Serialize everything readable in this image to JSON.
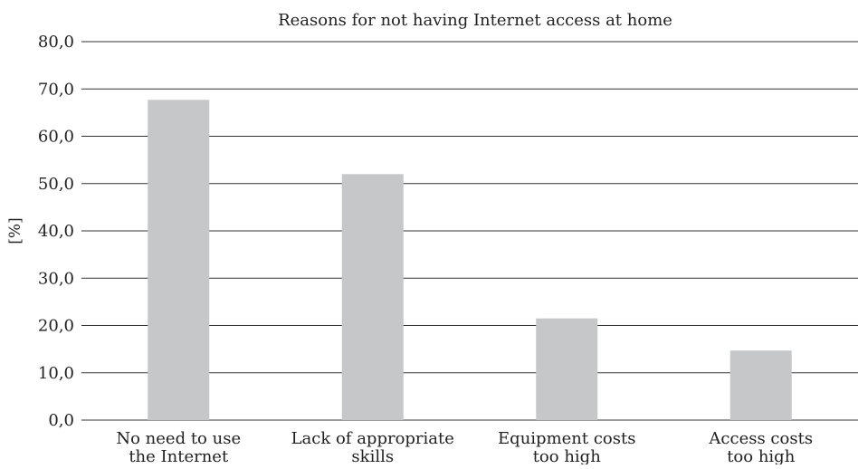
{
  "chart_data": {
    "type": "bar",
    "title": "Reasons for not having Internet access at home",
    "ylabel": "[%]",
    "xlabel": "",
    "ylim": [
      0,
      80
    ],
    "yticks": [
      "0,0",
      "10,0",
      "20,0",
      "30,0",
      "40,0",
      "50,0",
      "60,0",
      "70,0",
      "80,0"
    ],
    "grid": true,
    "categories": [
      [
        "No need to use",
        "the Internet"
      ],
      [
        "Lack of appropriate",
        "skills"
      ],
      [
        "Equipment costs",
        "too high"
      ],
      [
        "Access costs",
        "too high"
      ]
    ],
    "values": [
      67.7,
      52.0,
      21.5,
      14.7
    ],
    "colors": {
      "bar": "#c6c7c8",
      "grid": "#333333"
    }
  }
}
